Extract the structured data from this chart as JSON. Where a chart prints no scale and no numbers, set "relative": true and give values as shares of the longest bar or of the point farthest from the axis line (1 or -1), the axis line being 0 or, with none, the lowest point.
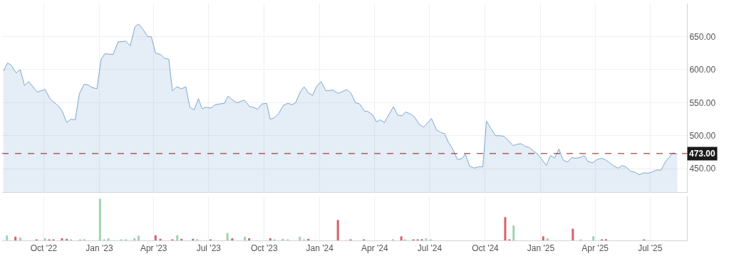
{
  "chart_data": [
    {
      "type": "area",
      "x": [
        "2022-07-26",
        "2022-08-02",
        "2022-08-08",
        "2022-08-16",
        "2022-08-23",
        "2022-08-30",
        "2022-09-06",
        "2022-09-20",
        "2022-10-03",
        "2022-10-12",
        "2022-10-25",
        "2022-10-31",
        "2022-11-08",
        "2022-11-15",
        "2022-11-22",
        "2022-11-29",
        "2022-12-07",
        "2022-12-13",
        "2022-12-20",
        "2022-12-28",
        "2023-01-04",
        "2023-01-10",
        "2023-01-24",
        "2023-02-01",
        "2023-02-14",
        "2023-02-21",
        "2023-03-01",
        "2023-03-07",
        "2023-03-15",
        "2023-03-22",
        "2023-03-28",
        "2023-04-04",
        "2023-04-12",
        "2023-04-19",
        "2023-04-26",
        "2023-05-02",
        "2023-05-09",
        "2023-05-17",
        "2023-05-24",
        "2023-05-31",
        "2023-06-07",
        "2023-06-14",
        "2023-06-20",
        "2023-06-27",
        "2023-07-05",
        "2023-07-12",
        "2023-07-27",
        "2023-08-02",
        "2023-08-11",
        "2023-08-17",
        "2023-08-29",
        "2023-09-07",
        "2023-09-13",
        "2023-09-20",
        "2023-09-27",
        "2023-10-05",
        "2023-10-11",
        "2023-10-18",
        "2023-10-25",
        "2023-11-02",
        "2023-11-09",
        "2023-11-16",
        "2023-11-22",
        "2023-11-30",
        "2023-12-06",
        "2023-12-13",
        "2023-12-20",
        "2023-12-27",
        "2024-01-03",
        "2024-01-11",
        "2024-01-23",
        "2024-01-31",
        "2024-02-08",
        "2024-02-15",
        "2024-02-22",
        "2024-02-29",
        "2024-03-07",
        "2024-03-15",
        "2024-03-20",
        "2024-03-28",
        "2024-04-04",
        "2024-04-10",
        "2024-04-17",
        "2024-05-02",
        "2024-05-09",
        "2024-05-16",
        "2024-05-22",
        "2024-05-30",
        "2024-06-06",
        "2024-06-14",
        "2024-06-21",
        "2024-07-04",
        "2024-07-12",
        "2024-07-19",
        "2024-07-26",
        "2024-08-01",
        "2024-08-08",
        "2024-08-16",
        "2024-08-23",
        "2024-08-29",
        "2024-09-05",
        "2024-09-13",
        "2024-09-20",
        "2024-09-27",
        "2024-10-03",
        "2024-10-11",
        "2024-10-18",
        "2024-10-26",
        "2024-11-01",
        "2024-11-08",
        "2024-11-16",
        "2024-11-23",
        "2024-11-29",
        "2024-12-06",
        "2024-12-13",
        "2024-12-21",
        "2024-12-26",
        "2025-01-02",
        "2025-01-10",
        "2025-01-17",
        "2025-01-24",
        "2025-01-31",
        "2025-02-07",
        "2025-02-14",
        "2025-02-21",
        "2025-02-28",
        "2025-03-07",
        "2025-03-14",
        "2025-03-20",
        "2025-03-28",
        "2025-04-04",
        "2025-04-12",
        "2025-04-19",
        "2025-04-25",
        "2025-05-02",
        "2025-05-09",
        "2025-05-16",
        "2025-05-23",
        "2025-05-30",
        "2025-06-05",
        "2025-06-13",
        "2025-06-21",
        "2025-06-27",
        "2025-07-04",
        "2025-07-11",
        "2025-07-19",
        "2025-07-26",
        "2025-08-02",
        "2025-08-08",
        "2025-08-15"
      ],
      "series": [
        {
          "color": "#7ba7d0",
          "values": [
            598,
            610,
            607,
            595,
            600,
            576,
            582,
            566,
            570,
            555,
            545,
            538,
            520,
            525,
            524,
            564,
            578,
            577,
            573,
            571,
            616,
            624,
            623,
            642,
            643,
            636,
            665,
            669,
            660,
            650,
            650,
            625,
            623,
            617,
            616,
            568,
            574,
            571,
            574,
            543,
            539,
            556,
            541,
            543,
            542,
            547,
            549,
            560,
            553,
            550,
            554,
            544,
            543,
            540,
            548,
            549,
            525,
            527,
            534,
            546,
            549,
            547,
            550,
            567,
            574,
            565,
            561,
            575,
            582,
            568,
            569,
            564,
            567,
            570,
            564,
            550,
            548,
            537,
            537,
            532,
            521,
            524,
            520,
            544,
            531,
            530,
            536,
            533,
            528,
            517,
            513,
            526,
            509,
            505,
            503,
            490,
            480,
            464,
            465,
            472,
            454,
            451,
            453,
            453,
            522,
            510,
            500,
            500,
            499,
            493,
            485,
            487,
            488,
            484,
            482,
            476,
            473,
            465,
            455,
            470,
            466,
            480,
            463,
            460,
            467,
            466,
            467,
            470,
            461,
            459,
            464,
            466,
            463,
            459,
            454,
            451,
            455,
            452,
            446,
            445,
            441,
            444,
            443,
            445,
            448,
            448,
            460,
            468,
            474,
            472
          ]
        }
      ],
      "xlim": [
        "2022-07-24",
        "2025-08-31"
      ],
      "xticks": [
        {
          "value": "2022-10-01",
          "label": null
        },
        {
          "value": "2023-01-01",
          "label": null
        },
        {
          "value": "2023-04-01",
          "label": null
        },
        {
          "value": "2023-07-01",
          "label": null
        },
        {
          "value": "2023-10-01",
          "label": null
        },
        {
          "value": "2024-01-01",
          "label": null
        },
        {
          "value": "2024-04-01",
          "label": null
        },
        {
          "value": "2024-07-01",
          "label": null
        },
        {
          "value": "2024-10-01",
          "label": null
        },
        {
          "value": "2025-01-01",
          "label": null
        },
        {
          "value": "2025-04-01",
          "label": null
        },
        {
          "value": "2025-07-01",
          "label": null
        }
      ],
      "ylim": [
        415,
        700
      ],
      "yticks": [
        {
          "value": 450,
          "label": "450.00"
        },
        {
          "value": 500,
          "label": "500.00"
        },
        {
          "value": 550,
          "label": "550.00"
        },
        {
          "value": 600,
          "label": "600.00"
        },
        {
          "value": 650,
          "label": "650.00"
        }
      ],
      "ref_lines": [
        {
          "axis": "y",
          "value": 473,
          "label": "473.00",
          "color": "#8b1a1a",
          "line_style": "dashed"
        }
      ],
      "grid": true,
      "tick_labels": "y"
    },
    {
      "type": "bar",
      "relative": true,
      "x": [
        "2022-08-01",
        "2022-08-15",
        "2022-08-23",
        "2022-09-19",
        "2022-10-03",
        "2022-10-10",
        "2022-10-17",
        "2022-10-31",
        "2022-11-08",
        "2022-11-15",
        "2022-11-30",
        "2022-12-07",
        "2023-01-02",
        "2023-01-09",
        "2023-01-16",
        "2023-02-06",
        "2023-02-14",
        "2023-02-28",
        "2023-03-07",
        "2023-04-04",
        "2023-04-12",
        "2023-05-02",
        "2023-05-10",
        "2023-05-17",
        "2023-06-05",
        "2023-06-12",
        "2023-07-04",
        "2023-08-01",
        "2023-08-09",
        "2023-08-30",
        "2023-09-06",
        "2023-10-11",
        "2023-10-18",
        "2023-11-01",
        "2023-11-09",
        "2023-11-29",
        "2023-12-06",
        "2023-12-13",
        "2024-01-31",
        "2024-02-21",
        "2024-03-14",
        "2024-05-01",
        "2024-05-15",
        "2024-05-21",
        "2024-06-04",
        "2024-06-11",
        "2024-06-18",
        "2024-06-25",
        "2024-07-03",
        "2024-11-03",
        "2024-11-10",
        "2024-11-17",
        "2025-01-05",
        "2025-01-12",
        "2025-02-23",
        "2025-03-08",
        "2025-03-29",
        "2025-04-12",
        "2025-04-19",
        "2025-06-21"
      ],
      "values": [
        0.12,
        0.09,
        0.07,
        0.02,
        0.05,
        0.02,
        0.02,
        0.05,
        0.04,
        0.02,
        0.02,
        0.03,
        1,
        0.02,
        0.05,
        0.02,
        0.02,
        0.05,
        0.11,
        0.125,
        0.04,
        0.02,
        0.125,
        0.04,
        0.04,
        0.03,
        0.02,
        0.18,
        0.05,
        0.09,
        0.05,
        0.05,
        0.02,
        0.04,
        0.02,
        0.09,
        0.02,
        0.04,
        0.49,
        0.02,
        0.02,
        0.03,
        0.1,
        0.02,
        0.02,
        0.02,
        0.03,
        0.05,
        0.02,
        0.56,
        0.02,
        0.36,
        0.1,
        0.05,
        0.28,
        0.02,
        0.1,
        0.02,
        0.03,
        0.02
      ],
      "colors": [
        "#9fd4b0",
        "#d9646a",
        "#9fd4b0",
        "#d9646a",
        "#9fd4b0",
        "#d9646a",
        "#d9646a",
        "#d9646a",
        "#d9646a",
        "#9fd4b0",
        "#9fd4b0",
        "#9fd4b0",
        "#9fd4b0",
        "#9fd4b0",
        "#9fd4b0",
        "#9fd4b0",
        "#9fd4b0",
        "#9fd4b0",
        "#9fd4b0",
        "#d9646a",
        "#d9646a",
        "#d9646a",
        "#9fd4b0",
        "#d9646a",
        "#d9646a",
        "#9fd4b0",
        "#d9646a",
        "#9fd4b0",
        "#d9646a",
        "#9fd4b0",
        "#d9646a",
        "#d9646a",
        "#9fd4b0",
        "#9fd4b0",
        "#9fd4b0",
        "#9fd4b0",
        "#9fd4b0",
        "#d9646a",
        "#d9646a",
        "#d9646a",
        "#d9646a",
        "#9fd4b0",
        "#d9646a",
        "#9fd4b0",
        "#d9646a",
        "#d9646a",
        "#d9646a",
        "#9fd4b0",
        "#9fd4b0",
        "#d9646a",
        "#d9646a",
        "#9fd4b0",
        "#d9646a",
        "#9fd4b0",
        "#d9646a",
        "#9fd4b0",
        "#9fd4b0",
        "#d9646a",
        "#d9646a",
        "#d9646a"
      ],
      "xlim": [
        "2022-07-24",
        "2025-08-31"
      ],
      "xticks": [
        {
          "value": "2022-10-01",
          "label": "Oct '22"
        },
        {
          "value": "2023-01-01",
          "label": "Jan '23"
        },
        {
          "value": "2023-04-01",
          "label": "Apr '23"
        },
        {
          "value": "2023-07-01",
          "label": "Jul '23"
        },
        {
          "value": "2023-10-01",
          "label": "Oct '23"
        },
        {
          "value": "2024-01-01",
          "label": "Jan '24"
        },
        {
          "value": "2024-04-01",
          "label": "Apr '24"
        },
        {
          "value": "2024-07-01",
          "label": "Jul '24"
        },
        {
          "value": "2024-10-01",
          "label": "Oct '24"
        },
        {
          "value": "2025-01-01",
          "label": "Jan '25"
        },
        {
          "value": "2025-04-01",
          "label": "Apr '25"
        },
        {
          "value": "2025-07-01",
          "label": "Jul '25"
        }
      ],
      "grid": "x",
      "tick_labels": "x"
    }
  ]
}
